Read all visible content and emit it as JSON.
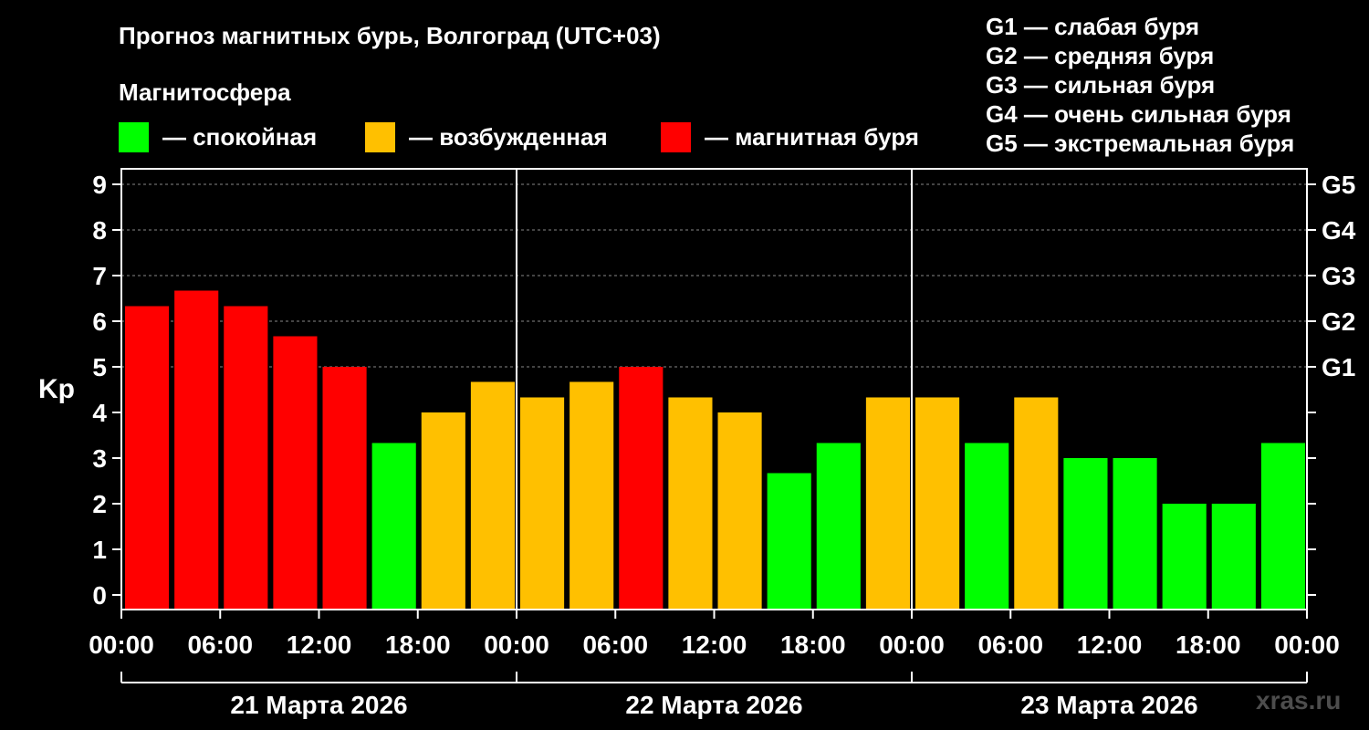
{
  "chart_data": {
    "type": "bar",
    "title": "Прогноз магнитных бурь, Волгоград (UTC+03)",
    "subtitle": "Магнитосфера",
    "ylabel": "Kp",
    "ylim": [
      0,
      9
    ],
    "y_ticks": [
      "0",
      "1",
      "2",
      "3",
      "4",
      "5",
      "6",
      "7",
      "8",
      "9"
    ],
    "storm_axis": [
      {
        "kp": 5,
        "label": "G1"
      },
      {
        "kp": 6,
        "label": "G2"
      },
      {
        "kp": 7,
        "label": "G3"
      },
      {
        "kp": 8,
        "label": "G4"
      },
      {
        "kp": 9,
        "label": "G5"
      }
    ],
    "x_ticks": [
      "00:00",
      "06:00",
      "12:00",
      "18:00",
      "00:00",
      "06:00",
      "12:00",
      "18:00",
      "00:00",
      "06:00",
      "12:00",
      "18:00",
      "00:00"
    ],
    "days": [
      "21 Марта 2026",
      "22 Марта 2026",
      "23 Марта 2026"
    ],
    "legend": [
      {
        "label": "— спокойная",
        "color": "#00ff00"
      },
      {
        "label": "— возбужденная",
        "color": "#ffc000"
      },
      {
        "label": "— магнитная буря",
        "color": "#ff0000"
      }
    ],
    "storm_legend": [
      "G1 — слабая буря",
      "G2 — средняя буря",
      "G3 — сильная буря",
      "G4 — очень сильная буря",
      "G5 — экстремальная буря"
    ],
    "grid": "horizontal dashed at G levels",
    "values": [
      6.33,
      6.67,
      6.33,
      5.67,
      5.0,
      3.33,
      4.0,
      4.67,
      4.33,
      4.67,
      5.0,
      4.33,
      4.0,
      2.67,
      3.33,
      4.33,
      4.33,
      3.33,
      4.33,
      3.0,
      3.0,
      2.0,
      2.0,
      3.33
    ],
    "levels": [
      "storm",
      "storm",
      "storm",
      "storm",
      "storm",
      "quiet",
      "excited",
      "excited",
      "excited",
      "excited",
      "storm",
      "excited",
      "excited",
      "quiet",
      "quiet",
      "excited",
      "excited",
      "quiet",
      "excited",
      "quiet",
      "quiet",
      "quiet",
      "quiet",
      "quiet"
    ],
    "colors": {
      "quiet": "#00ff00",
      "excited": "#ffc000",
      "storm": "#ff0000"
    }
  },
  "watermark": "xras.ru"
}
